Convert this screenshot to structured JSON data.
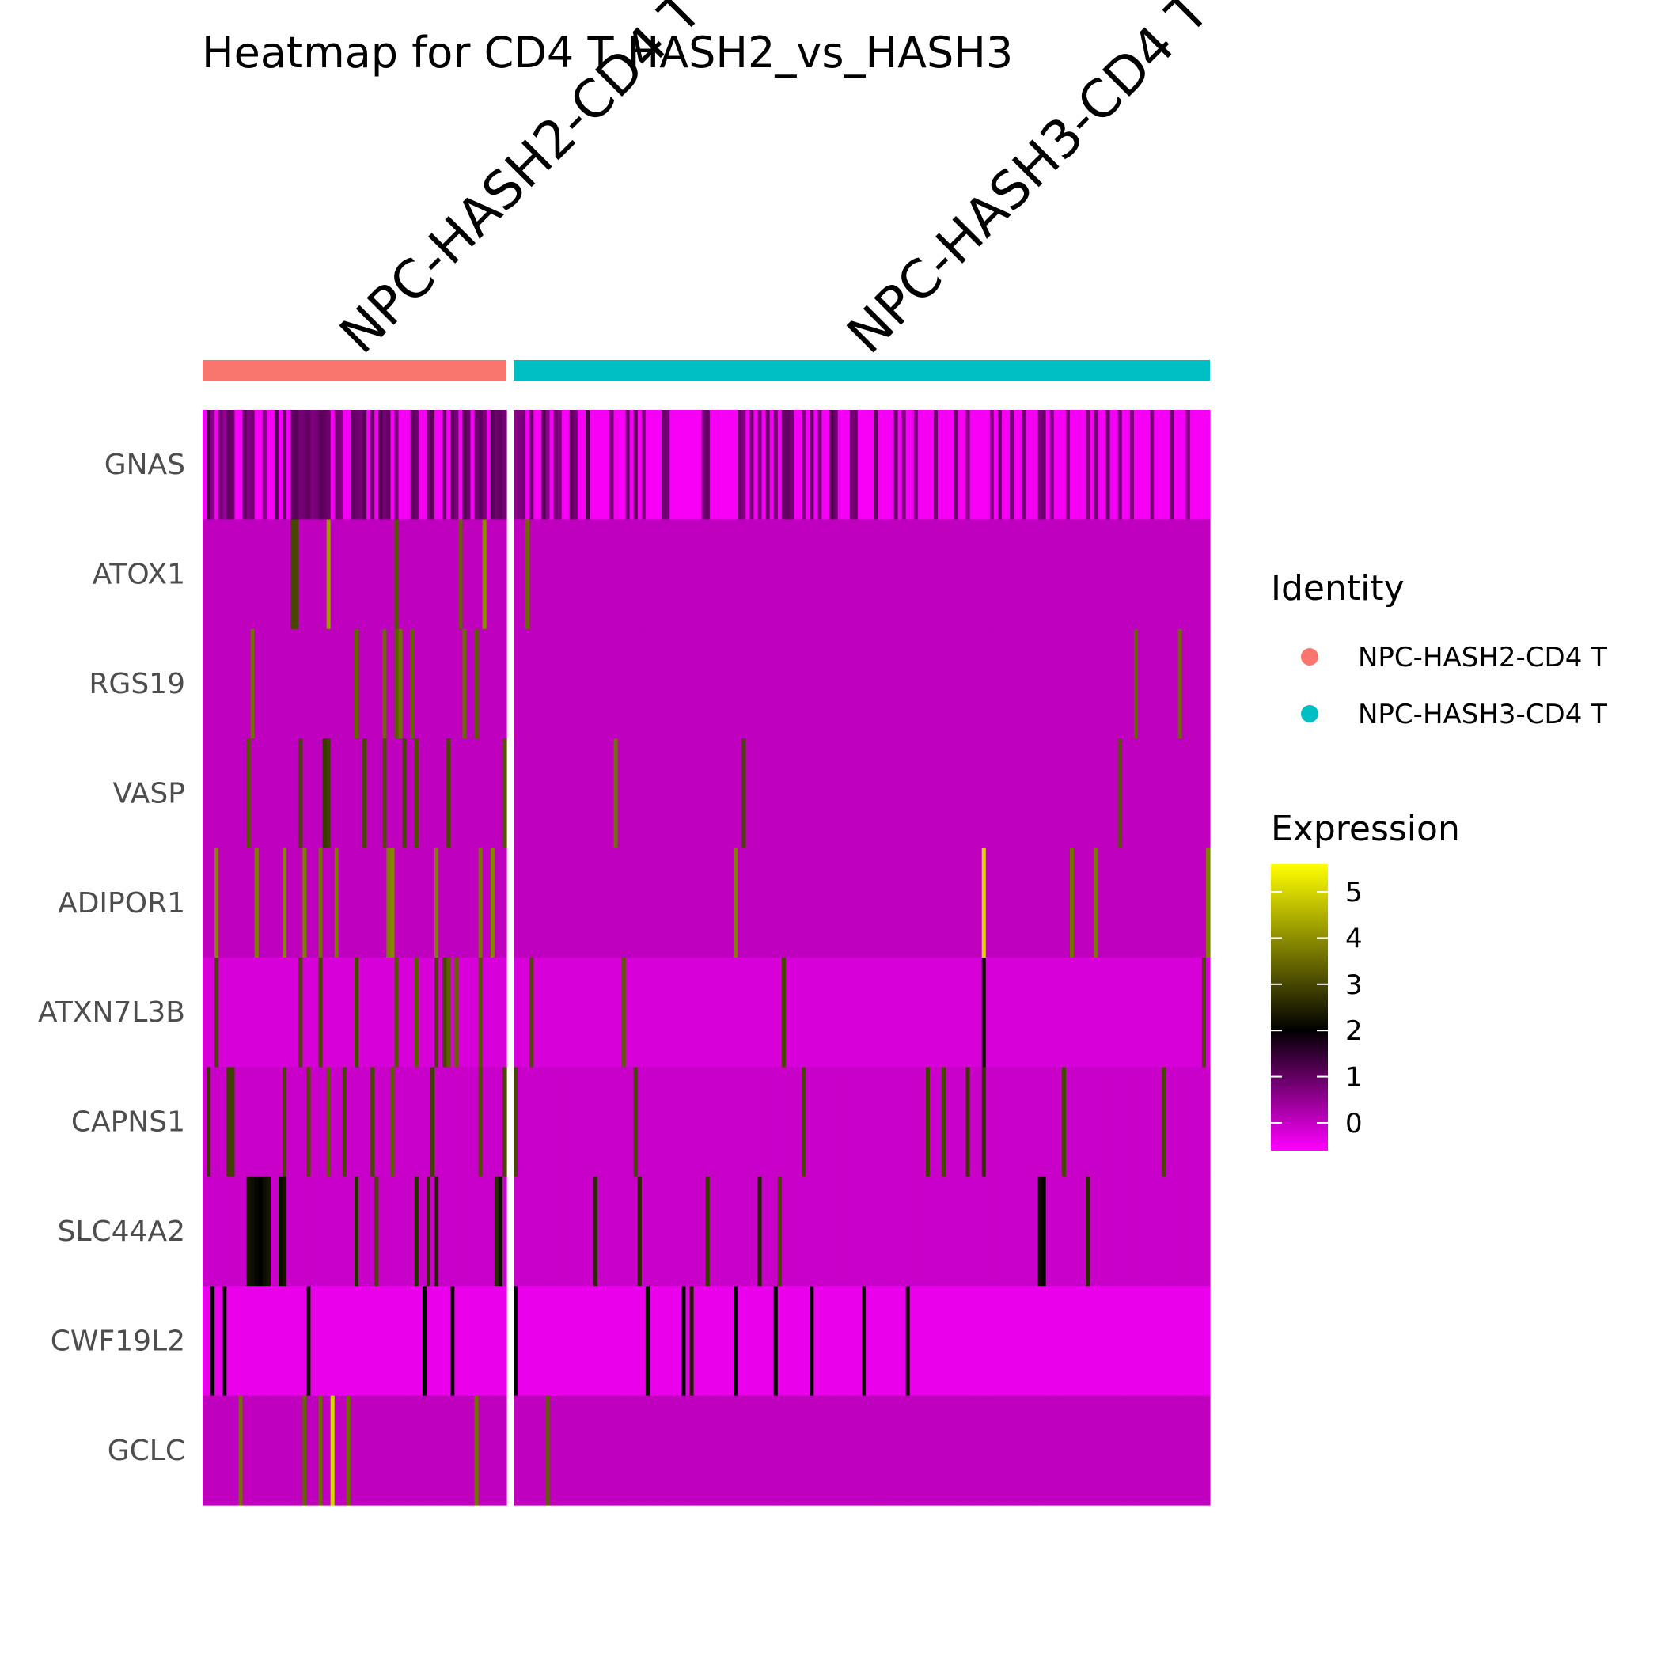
{
  "chart_data": {
    "type": "heatmap",
    "title": "Heatmap for CD4 T HASH2_vs_HASH3",
    "genes": [
      "GNAS",
      "ATOX1",
      "RGS19",
      "VASP",
      "ADIPOR1",
      "ATXN7L3B",
      "CAPNS1",
      "SLC44A2",
      "CWF19L2",
      "GCLC"
    ],
    "groups": [
      {
        "name": "NPC-HASH2-CD4 T",
        "color": "#F8766D",
        "n_cells": 76
      },
      {
        "name": "NPC-HASH3-CD4 T",
        "color": "#00BFC4",
        "n_cells": 174
      }
    ],
    "identity_legend": {
      "title": "Identity",
      "entries": [
        "NPC-HASH2-CD4 T",
        "NPC-HASH3-CD4 T"
      ]
    },
    "expression_legend": {
      "title": "Expression",
      "ticks": [
        "0",
        "1",
        "2",
        "3",
        "4",
        "5"
      ],
      "range": [
        -0.6,
        5.6
      ],
      "colors": [
        "#FF00FF",
        "#000000",
        "#FFFF00"
      ]
    },
    "baseline": {
      "GNAS": -0.5,
      "ATOX1": 0.05,
      "RGS19": 0.05,
      "VASP": 0.05,
      "ADIPOR1": 0.05,
      "ATXN7L3B": -0.2,
      "CAPNS1": -0.05,
      "SLC44A2": -0.05,
      "CWF19L2": -0.4,
      "GCLC": 0.05
    },
    "high_cells": {
      "GNAS": [
        [
          1,
          1.2
        ],
        [
          2,
          0.6
        ],
        [
          4,
          0.8
        ],
        [
          5,
          0.5
        ],
        [
          6,
          1.0
        ],
        [
          7,
          0.9
        ],
        [
          10,
          1.0
        ],
        [
          11,
          0.7
        ],
        [
          12,
          0.8
        ],
        [
          15,
          0.6
        ],
        [
          18,
          1.2
        ],
        [
          20,
          0.9
        ],
        [
          22,
          1.0
        ],
        [
          23,
          1.1
        ],
        [
          24,
          0.8
        ],
        [
          25,
          0.9
        ],
        [
          26,
          1.0
        ],
        [
          27,
          0.7
        ],
        [
          28,
          0.8
        ],
        [
          29,
          1.1
        ],
        [
          30,
          1.0
        ],
        [
          31,
          0.9
        ],
        [
          33,
          0.8
        ],
        [
          34,
          0.7
        ],
        [
          37,
          1.0
        ],
        [
          38,
          0.9
        ],
        [
          39,
          0.8
        ],
        [
          40,
          1.1
        ],
        [
          42,
          0.9
        ],
        [
          44,
          1.2
        ],
        [
          45,
          0.8
        ],
        [
          46,
          1.0
        ],
        [
          48,
          0.7
        ],
        [
          52,
          1.0
        ],
        [
          53,
          0.9
        ],
        [
          56,
          0.8
        ],
        [
          57,
          1.1
        ],
        [
          60,
          0.9
        ],
        [
          62,
          1.0
        ],
        [
          63,
          0.8
        ],
        [
          65,
          1.1
        ],
        [
          66,
          0.9
        ],
        [
          68,
          0.9
        ],
        [
          69,
          1.0
        ],
        [
          70,
          0.8
        ],
        [
          72,
          1.1
        ],
        [
          73,
          0.9
        ],
        [
          74,
          1.0
        ],
        [
          75,
          0.8
        ],
        [
          76,
          0.6
        ],
        [
          77,
          0.7
        ],
        [
          78,
          0.8
        ],
        [
          80,
          0.9
        ],
        [
          83,
          1.2
        ],
        [
          84,
          0.6
        ],
        [
          86,
          0.8
        ],
        [
          87,
          0.7
        ],
        [
          90,
          1.0
        ],
        [
          91,
          0.8
        ],
        [
          94,
          1.2
        ],
        [
          100,
          0.8
        ],
        [
          104,
          0.9
        ],
        [
          106,
          1.0
        ],
        [
          108,
          0.7
        ],
        [
          113,
          0.9
        ],
        [
          114,
          0.8
        ],
        [
          123,
          0.8
        ],
        [
          124,
          1.0
        ],
        [
          132,
          0.9
        ],
        [
          133,
          0.7
        ],
        [
          135,
          0.8
        ],
        [
          137,
          0.7
        ],
        [
          139,
          0.9
        ],
        [
          141,
          0.8
        ],
        [
          143,
          0.9
        ],
        [
          144,
          1.0
        ],
        [
          145,
          0.8
        ],
        [
          148,
          0.7
        ],
        [
          150,
          0.9
        ],
        [
          152,
          0.7
        ],
        [
          155,
          1.2
        ],
        [
          156,
          0.9
        ],
        [
          160,
          0.8
        ],
        [
          161,
          0.9
        ],
        [
          166,
          1.0
        ],
        [
          171,
          0.9
        ],
        [
          173,
          0.7
        ],
        [
          176,
          0.8
        ],
        [
          181,
          0.8
        ],
        [
          186,
          0.9
        ],
        [
          189,
          0.7
        ],
        [
          195,
          0.7
        ],
        [
          197,
          0.9
        ],
        [
          200,
          0.8
        ],
        [
          203,
          0.9
        ],
        [
          207,
          0.8
        ],
        [
          208,
          0.9
        ],
        [
          210,
          0.7
        ],
        [
          214,
          0.8
        ],
        [
          219,
          0.7
        ],
        [
          221,
          0.8
        ],
        [
          224,
          0.9
        ],
        [
          227,
          0.8
        ],
        [
          230,
          0.7
        ],
        [
          235,
          0.8
        ],
        [
          240,
          0.9
        ],
        [
          244,
          0.7
        ]
      ],
      "ATOX1": [
        [
          22,
          3.0
        ],
        [
          23,
          3.0
        ],
        [
          31,
          4.2
        ],
        [
          48,
          3.2
        ],
        [
          64,
          3.4
        ],
        [
          70,
          4.0
        ],
        [
          79,
          3.5
        ]
      ],
      "RGS19": [
        [
          12,
          3.6
        ],
        [
          38,
          3.4
        ],
        [
          45,
          3.5
        ],
        [
          48,
          3.3
        ],
        [
          49,
          3.6
        ],
        [
          52,
          3.4
        ],
        [
          65,
          3.5
        ],
        [
          68,
          3.3
        ],
        [
          231,
          3.4
        ],
        [
          242,
          3.5
        ]
      ],
      "VASP": [
        [
          11,
          3.2
        ],
        [
          24,
          3.0
        ],
        [
          30,
          2.8
        ],
        [
          31,
          2.9
        ],
        [
          40,
          3.0
        ],
        [
          45,
          3.1
        ],
        [
          50,
          3.0
        ],
        [
          53,
          3.1
        ],
        [
          61,
          3.0
        ],
        [
          75,
          3.2
        ],
        [
          101,
          3.6
        ],
        [
          133,
          3.0
        ],
        [
          227,
          3.2
        ]
      ],
      "ADIPOR1": [
        [
          3,
          3.9
        ],
        [
          13,
          3.8
        ],
        [
          20,
          3.9
        ],
        [
          25,
          3.8
        ],
        [
          29,
          3.6
        ],
        [
          33,
          3.7
        ],
        [
          46,
          3.8
        ],
        [
          47,
          3.9
        ],
        [
          58,
          3.8
        ],
        [
          69,
          3.7
        ],
        [
          72,
          3.9
        ],
        [
          131,
          3.8
        ],
        [
          193,
          5.1
        ],
        [
          215,
          3.6
        ],
        [
          221,
          3.7
        ],
        [
          249,
          3.8
        ]
      ],
      "ATXN7L3B": [
        [
          3,
          3.0
        ],
        [
          24,
          3.0
        ],
        [
          29,
          3.0
        ],
        [
          38,
          3.0
        ],
        [
          48,
          3.2
        ],
        [
          53,
          3.3
        ],
        [
          58,
          3.0
        ],
        [
          60,
          3.0
        ],
        [
          61,
          3.3
        ],
        [
          63,
          3.4
        ],
        [
          69,
          3.2
        ],
        [
          80,
          3.1
        ],
        [
          103,
          3.3
        ],
        [
          143,
          3.0
        ],
        [
          193,
          2.2
        ],
        [
          248,
          3.0
        ]
      ],
      "CAPNS1": [
        [
          1,
          2.8
        ],
        [
          6,
          2.9
        ],
        [
          7,
          2.9
        ],
        [
          20,
          3.0
        ],
        [
          26,
          3.1
        ],
        [
          31,
          3.3
        ],
        [
          35,
          3.0
        ],
        [
          42,
          3.0
        ],
        [
          47,
          3.3
        ],
        [
          57,
          2.9
        ],
        [
          69,
          3.1
        ],
        [
          75,
          3.0
        ],
        [
          76,
          3.0
        ],
        [
          106,
          3.0
        ],
        [
          148,
          3.0
        ],
        [
          179,
          2.9
        ],
        [
          183,
          3.0
        ],
        [
          189,
          2.8
        ],
        [
          193,
          2.7
        ],
        [
          213,
          3.0
        ],
        [
          238,
          3.0
        ]
      ],
      "SLC44A2": [
        [
          11,
          2.3
        ],
        [
          12,
          2.2
        ],
        [
          13,
          2.1
        ],
        [
          14,
          2.0
        ],
        [
          15,
          2.2
        ],
        [
          16,
          2.3
        ],
        [
          19,
          2.2
        ],
        [
          20,
          2.3
        ],
        [
          38,
          2.6
        ],
        [
          43,
          3.0
        ],
        [
          53,
          2.6
        ],
        [
          56,
          2.7
        ],
        [
          58,
          2.5
        ],
        [
          73,
          2.6
        ],
        [
          74,
          2.2
        ],
        [
          96,
          2.6
        ],
        [
          107,
          2.6
        ],
        [
          124,
          2.8
        ],
        [
          137,
          2.5
        ],
        [
          142,
          3.0
        ],
        [
          207,
          2.2
        ],
        [
          208,
          2.1
        ],
        [
          219,
          2.6
        ]
      ],
      "CWF19L2": [
        [
          2,
          2.0
        ],
        [
          5,
          2.0
        ],
        [
          26,
          2.2
        ],
        [
          55,
          2.0
        ],
        [
          62,
          2.0
        ],
        [
          76,
          2.0
        ],
        [
          109,
          2.2
        ],
        [
          118,
          2.0
        ],
        [
          120,
          2.5
        ],
        [
          131,
          2.0
        ],
        [
          141,
          2.0
        ],
        [
          150,
          2.0
        ],
        [
          163,
          2.2
        ],
        [
          174,
          2.2
        ]
      ],
      "GCLC": [
        [
          9,
          3.6
        ],
        [
          25,
          3.4
        ],
        [
          29,
          3.5
        ],
        [
          32,
          5.0
        ],
        [
          36,
          3.5
        ],
        [
          68,
          3.6
        ],
        [
          84,
          3.3
        ]
      ]
    }
  }
}
